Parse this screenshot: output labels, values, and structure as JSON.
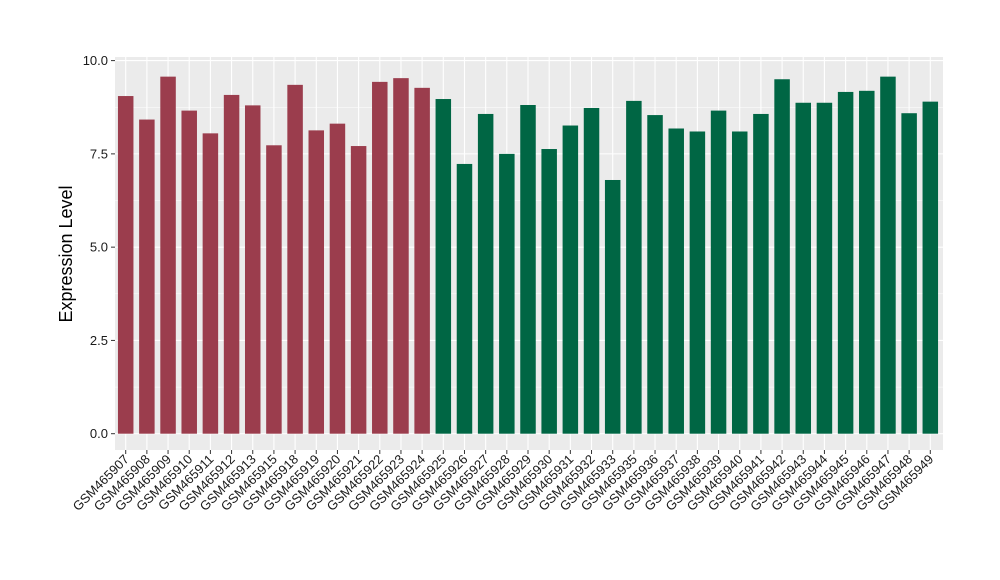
{
  "chart_data": {
    "type": "bar",
    "title": "",
    "xlabel": "",
    "ylabel": "Expression Level",
    "ylim": [
      -0.35,
      10.0
    ],
    "yticks": [
      0.0,
      2.5,
      5.0,
      7.5,
      10.0
    ],
    "ytick_labels": [
      "0.0",
      "2.5",
      "5.0",
      "7.5",
      "10.0"
    ],
    "grid": true,
    "legend": "none",
    "panel_background": "#ebebeb",
    "grid_color": "#ffffff",
    "categories": [
      "GSM465907",
      "GSM465908",
      "GSM465909",
      "GSM465910",
      "GSM465911",
      "GSM465912",
      "GSM465913",
      "GSM465915",
      "GSM465918",
      "GSM465919",
      "GSM465920",
      "GSM465921",
      "GSM465922",
      "GSM465923",
      "GSM465924",
      "GSM465925",
      "GSM465926",
      "GSM465927",
      "GSM465928",
      "GSM465929",
      "GSM465930",
      "GSM465931",
      "GSM465932",
      "GSM465933",
      "GSM465935",
      "GSM465936",
      "GSM465937",
      "GSM465938",
      "GSM465939",
      "GSM465940",
      "GSM465941",
      "GSM465942",
      "GSM465943",
      "GSM465944",
      "GSM465945",
      "GSM465946",
      "GSM465947",
      "GSM465948",
      "GSM465949"
    ],
    "values": [
      9.05,
      8.42,
      9.57,
      8.66,
      8.05,
      9.08,
      8.8,
      7.73,
      9.35,
      8.13,
      8.31,
      7.71,
      9.43,
      9.53,
      9.27,
      8.97,
      7.23,
      8.57,
      7.5,
      8.81,
      7.63,
      8.26,
      8.73,
      6.8,
      8.92,
      8.54,
      8.18,
      8.1,
      8.66,
      8.1,
      8.57,
      9.5,
      8.87,
      8.87,
      9.16,
      9.19,
      9.57,
      8.59,
      8.9
    ],
    "group_sizes": [
      15,
      24
    ],
    "group_colors": [
      "#9b3d4d",
      "#006644"
    ]
  }
}
